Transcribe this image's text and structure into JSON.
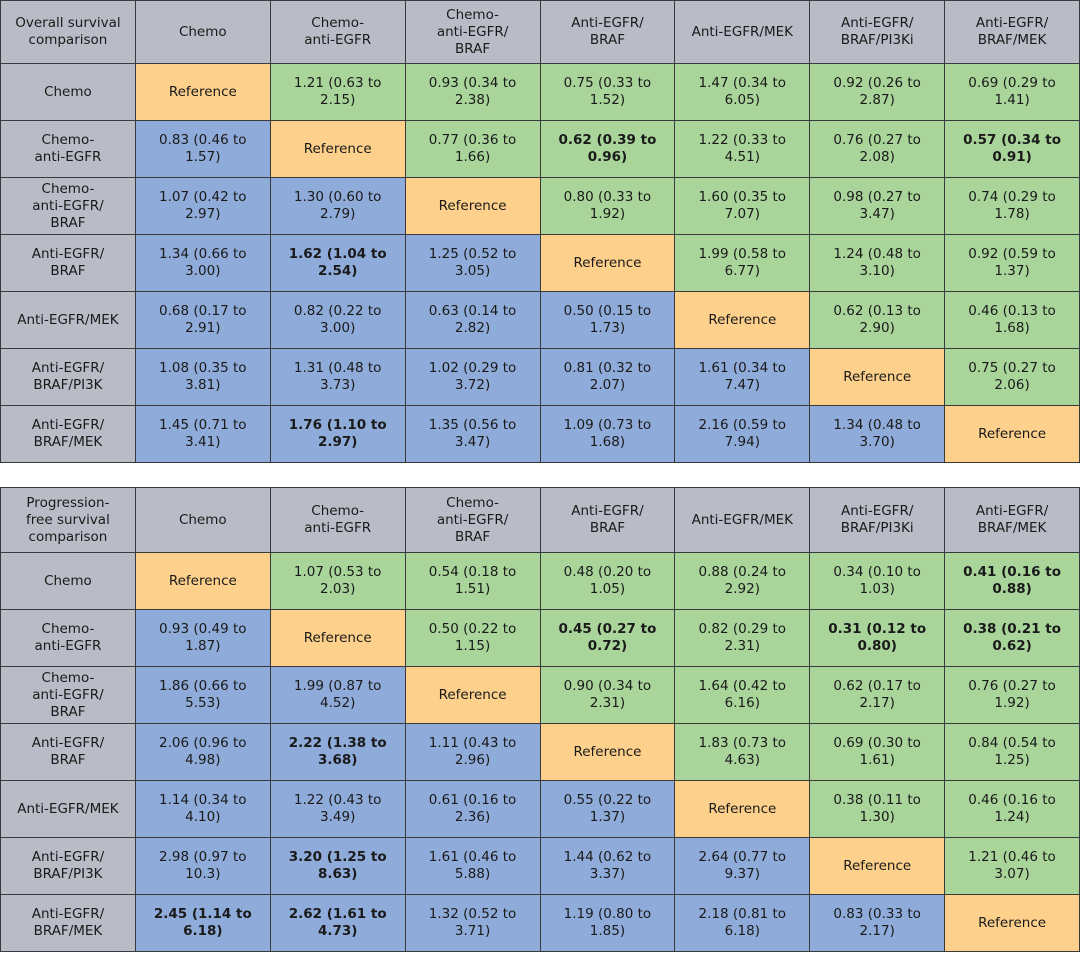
{
  "colors": {
    "header": "#b9bcc6",
    "reference": "#fdd08b",
    "upper": "#a9d59b",
    "lower": "#8fabd9"
  },
  "reference_label": "Reference",
  "columns": [
    "Chemo",
    "Chemo-\nanti-EGFR",
    "Chemo-\nanti-EGFR/\nBRAF",
    "Anti-EGFR/\nBRAF",
    "Anti-EGFR/MEK",
    "Anti-EGFR/\nBRAF/PI3Ki",
    "Anti-EGFR/\nBRAF/MEK"
  ],
  "row_labels": [
    "Chemo",
    "Chemo-\nanti-EGFR",
    "Chemo-\nanti-EGFR/\nBRAF",
    "Anti-EGFR/\nBRAF",
    "Anti-EGFR/MEK",
    "Anti-EGFR/\nBRAF/PI3K",
    "Anti-EGFR/\nBRAF/MEK"
  ],
  "tables": [
    {
      "corner": "Overall survival\ncomparison",
      "rows": [
        [
          "Reference",
          "1.21 (0.63 to 2.15)",
          "0.93 (0.34 to 2.38)",
          "0.75 (0.33 to 1.52)",
          "1.47 (0.34 to 6.05)",
          "0.92 (0.26 to 2.87)",
          "0.69 (0.29 to 1.41)"
        ],
        [
          "0.83 (0.46 to 1.57)",
          "Reference",
          "0.77 (0.36 to 1.66)",
          {
            "v": "0.62 (0.39 to 0.96)",
            "bold": true
          },
          "1.22 (0.33 to 4.51)",
          "0.76 (0.27 to 2.08)",
          {
            "v": "0.57 (0.34 to 0.91)",
            "bold": true
          }
        ],
        [
          "1.07 (0.42 to 2.97)",
          "1.30 (0.60 to 2.79)",
          "Reference",
          "0.80 (0.33 to 1.92)",
          "1.60 (0.35 to 7.07)",
          "0.98 (0.27 to 3.47)",
          "0.74 (0.29 to 1.78)"
        ],
        [
          "1.34 (0.66 to 3.00)",
          {
            "v": "1.62 (1.04 to 2.54)",
            "bold": true
          },
          "1.25 (0.52 to 3.05)",
          "Reference",
          "1.99 (0.58 to 6.77)",
          "1.24 (0.48 to 3.10)",
          "0.92 (0.59 to 1.37)"
        ],
        [
          "0.68 (0.17 to 2.91)",
          "0.82 (0.22 to 3.00)",
          "0.63 (0.14 to 2.82)",
          "0.50 (0.15 to 1.73)",
          "Reference",
          "0.62 (0.13 to 2.90)",
          "0.46 (0.13 to 1.68)"
        ],
        [
          "1.08 (0.35 to 3.81)",
          "1.31 (0.48 to 3.73)",
          "1.02 (0.29 to 3.72)",
          "0.81 (0.32 to 2.07)",
          "1.61 (0.34 to 7.47)",
          "Reference",
          "0.75 (0.27 to 2.06)"
        ],
        [
          "1.45 (0.71 to 3.41)",
          {
            "v": "1.76 (1.10 to 2.97)",
            "bold": true
          },
          "1.35 (0.56 to 3.47)",
          "1.09 (0.73 to 1.68)",
          "2.16 (0.59 to 7.94)",
          "1.34 (0.48 to 3.70)",
          "Reference"
        ]
      ]
    },
    {
      "corner": "Progression-\nfree survival\ncomparison",
      "rows": [
        [
          "Reference",
          "1.07 (0.53 to 2.03)",
          "0.54 (0.18 to 1.51)",
          "0.48 (0.20 to 1.05)",
          "0.88 (0.24 to 2.92)",
          "0.34 (0.10 to 1.03)",
          {
            "v": "0.41 (0.16 to 0.88)",
            "bold": true
          }
        ],
        [
          "0.93 (0.49 to 1.87)",
          "Reference",
          "0.50 (0.22 to 1.15)",
          {
            "v": "0.45 (0.27 to 0.72)",
            "bold": true
          },
          "0.82 (0.29 to 2.31)",
          {
            "v": "0.31 (0.12 to 0.80)",
            "bold": true
          },
          {
            "v": "0.38 (0.21 to 0.62)",
            "bold": true
          }
        ],
        [
          "1.86 (0.66 to 5.53)",
          "1.99 (0.87 to 4.52)",
          "Reference",
          "0.90 (0.34 to 2.31)",
          "1.64 (0.42 to 6.16)",
          "0.62 (0.17 to 2.17)",
          "0.76 (0.27 to 1.92)"
        ],
        [
          "2.06 (0.96 to 4.98)",
          {
            "v": "2.22 (1.38 to 3.68)",
            "bold": true
          },
          "1.11 (0.43 to 2.96)",
          "Reference",
          "1.83 (0.73 to 4.63)",
          "0.69 (0.30 to 1.61)",
          "0.84 (0.54 to 1.25)"
        ],
        [
          "1.14 (0.34 to 4.10)",
          "1.22 (0.43 to 3.49)",
          "0.61 (0.16 to 2.36)",
          "0.55 (0.22 to 1.37)",
          "Reference",
          "0.38 (0.11 to 1.30)",
          "0.46 (0.16 to 1.24)"
        ],
        [
          "2.98 (0.97 to 10.3)",
          {
            "v": "3.20 (1.25 to 8.63)",
            "bold": true
          },
          "1.61 (0.46 to 5.88)",
          "1.44 (0.62 to 3.37)",
          "2.64 (0.77 to 9.37)",
          "Reference",
          "1.21 (0.46 to 3.07)"
        ],
        [
          {
            "v": "2.45 (1.14 to 6.18)",
            "bold": true
          },
          {
            "v": "2.62 (1.61 to 4.73)",
            "bold": true
          },
          "1.32 (0.52 to 3.71)",
          "1.19 (0.80 to 1.85)",
          "2.18 (0.81 to 6.18)",
          "0.83 (0.33 to 2.17)",
          "Reference"
        ]
      ]
    }
  ]
}
